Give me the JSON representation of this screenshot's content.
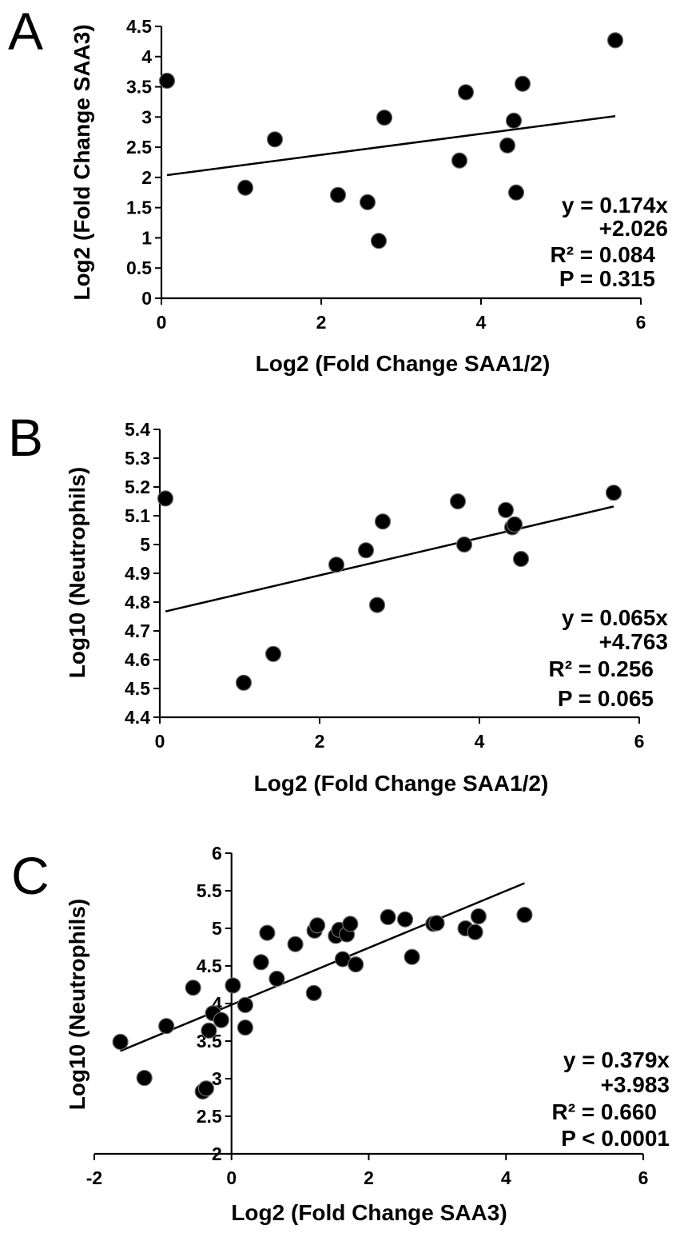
{
  "chart_data": [
    {
      "type": "scatter",
      "panel_label": "A",
      "xlabel": "Log2 (Fold Change SAA1/2)",
      "ylabel": "Log2 (Fold Change SAA3)",
      "xlim": [
        0,
        6
      ],
      "ylim": [
        0,
        4.5
      ],
      "xticks": [
        "0",
        "2",
        "4",
        "6"
      ],
      "yticks": [
        "0",
        "0.5",
        "1",
        "1.5",
        "2",
        "2.5",
        "3",
        "3.5",
        "4",
        "4.5"
      ],
      "points": [
        {
          "x": 0.07,
          "y": 3.6
        },
        {
          "x": 1.05,
          "y": 1.83
        },
        {
          "x": 1.42,
          "y": 2.63
        },
        {
          "x": 2.21,
          "y": 1.71
        },
        {
          "x": 2.58,
          "y": 1.59
        },
        {
          "x": 2.72,
          "y": 0.95
        },
        {
          "x": 2.79,
          "y": 2.99
        },
        {
          "x": 3.73,
          "y": 2.28
        },
        {
          "x": 3.81,
          "y": 3.41
        },
        {
          "x": 4.33,
          "y": 2.53
        },
        {
          "x": 4.41,
          "y": 2.94
        },
        {
          "x": 4.44,
          "y": 1.75
        },
        {
          "x": 4.52,
          "y": 3.55
        },
        {
          "x": 5.68,
          "y": 4.27
        }
      ],
      "trendline": {
        "slope": 0.174,
        "intercept": 2.026,
        "x_range": [
          0.07,
          5.68
        ]
      },
      "annotations": [
        "y = 0.174x",
        "+2.026",
        "R² = 0.084",
        "P = 0.315"
      ]
    },
    {
      "type": "scatter",
      "panel_label": "B",
      "xlabel": "Log2 (Fold Change SAA1/2)",
      "ylabel": "Log10 (Neutrophils)",
      "xlim": [
        0,
        6
      ],
      "ylim": [
        4.4,
        5.4
      ],
      "xticks": [
        "0",
        "2",
        "4",
        "6"
      ],
      "yticks": [
        "4.4",
        "4.5",
        "4.6",
        "4.7",
        "4.8",
        "4.9",
        "5",
        "5.1",
        "5.2",
        "5.3",
        "5.4"
      ],
      "points": [
        {
          "x": 0.07,
          "y": 5.16
        },
        {
          "x": 1.05,
          "y": 4.52
        },
        {
          "x": 1.42,
          "y": 4.62
        },
        {
          "x": 2.21,
          "y": 4.93
        },
        {
          "x": 2.58,
          "y": 4.98
        },
        {
          "x": 2.72,
          "y": 4.79
        },
        {
          "x": 2.79,
          "y": 5.08
        },
        {
          "x": 3.73,
          "y": 5.15
        },
        {
          "x": 3.81,
          "y": 5.0
        },
        {
          "x": 4.33,
          "y": 5.12
        },
        {
          "x": 4.41,
          "y": 5.06
        },
        {
          "x": 4.44,
          "y": 5.07
        },
        {
          "x": 4.52,
          "y": 4.95
        },
        {
          "x": 5.68,
          "y": 5.18
        }
      ],
      "trendline": {
        "slope": 0.065,
        "intercept": 4.763,
        "x_range": [
          0.07,
          5.68
        ]
      },
      "annotations": [
        "y = 0.065x",
        "+4.763",
        "R² = 0.256",
        "P = 0.065"
      ]
    },
    {
      "type": "scatter",
      "panel_label": "C",
      "xlabel": "Log2 (Fold Change SAA3)",
      "ylabel": "Log10 (Neutrophils)",
      "xlim": [
        -2,
        6
      ],
      "ylim": [
        2,
        6
      ],
      "xticks": [
        "-2",
        "0",
        "2",
        "4",
        "6"
      ],
      "yticks": [
        "2",
        "2.5",
        "3",
        "3.5",
        "4",
        "4.5",
        "5",
        "5.5",
        "6"
      ],
      "points": [
        {
          "x": -1.62,
          "y": 3.49
        },
        {
          "x": -1.27,
          "y": 3.01
        },
        {
          "x": -0.95,
          "y": 3.7
        },
        {
          "x": -0.56,
          "y": 4.21
        },
        {
          "x": -0.42,
          "y": 2.83
        },
        {
          "x": -0.37,
          "y": 2.87
        },
        {
          "x": -0.33,
          "y": 3.64
        },
        {
          "x": -0.27,
          "y": 3.87
        },
        {
          "x": -0.15,
          "y": 3.78
        },
        {
          "x": 0.02,
          "y": 4.24
        },
        {
          "x": 0.2,
          "y": 3.68
        },
        {
          "x": 0.2,
          "y": 3.98
        },
        {
          "x": 0.43,
          "y": 4.55
        },
        {
          "x": 0.52,
          "y": 4.94
        },
        {
          "x": 0.66,
          "y": 4.33
        },
        {
          "x": 0.93,
          "y": 4.79
        },
        {
          "x": 1.2,
          "y": 4.14
        },
        {
          "x": 1.21,
          "y": 4.97
        },
        {
          "x": 1.25,
          "y": 5.04
        },
        {
          "x": 1.52,
          "y": 4.9
        },
        {
          "x": 1.57,
          "y": 4.98
        },
        {
          "x": 1.62,
          "y": 4.59
        },
        {
          "x": 1.68,
          "y": 4.92
        },
        {
          "x": 1.73,
          "y": 5.06
        },
        {
          "x": 1.81,
          "y": 4.52
        },
        {
          "x": 2.28,
          "y": 5.15
        },
        {
          "x": 2.53,
          "y": 5.12
        },
        {
          "x": 2.63,
          "y": 4.62
        },
        {
          "x": 2.94,
          "y": 5.06
        },
        {
          "x": 2.99,
          "y": 5.07
        },
        {
          "x": 3.41,
          "y": 5.0
        },
        {
          "x": 3.55,
          "y": 4.95
        },
        {
          "x": 3.6,
          "y": 5.16
        },
        {
          "x": 4.27,
          "y": 5.18
        }
      ],
      "trendline": {
        "slope": 0.379,
        "intercept": 3.983,
        "x_range": [
          -1.62,
          4.27
        ]
      },
      "annotations": [
        "y = 0.379x",
        "+3.983",
        "R² = 0.660",
        "P < 0.0001"
      ]
    }
  ]
}
